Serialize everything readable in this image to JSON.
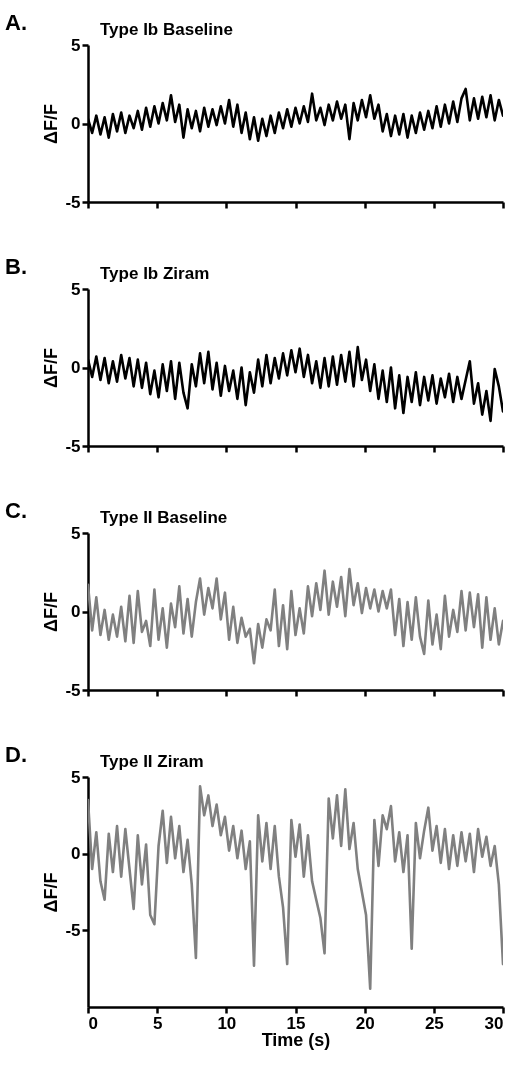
{
  "chart_data": [
    {
      "type": "line",
      "title": "A.",
      "subtitle": "Type Ib Baseline",
      "ylabel": "ΔF/F",
      "xlim": [
        0,
        30
      ],
      "xticks": [
        0,
        5,
        10,
        15,
        20,
        25,
        30
      ],
      "ylim": [
        -5,
        5
      ],
      "yticks": [
        -5,
        0,
        5
      ],
      "tick_labels": "y",
      "grid": false,
      "legend": false,
      "marker": "none",
      "line_style": "solid",
      "x": [
        0,
        0.3,
        0.6,
        0.9,
        1.2,
        1.5,
        1.8,
        2.1,
        2.4,
        2.7,
        3,
        3.3,
        3.6,
        3.9,
        4.2,
        4.5,
        4.8,
        5.1,
        5.4,
        5.7,
        6,
        6.3,
        6.6,
        6.9,
        7.2,
        7.5,
        7.8,
        8.1,
        8.4,
        8.7,
        9,
        9.3,
        9.6,
        9.9,
        10.2,
        10.5,
        10.8,
        11.1,
        11.4,
        11.7,
        12,
        12.3,
        12.6,
        12.9,
        13.2,
        13.5,
        13.8,
        14.1,
        14.4,
        14.7,
        15,
        15.3,
        15.6,
        15.9,
        16.2,
        16.5,
        16.8,
        17.1,
        17.4,
        17.7,
        18,
        18.3,
        18.6,
        18.9,
        19.2,
        19.5,
        19.8,
        20.1,
        20.4,
        20.7,
        21,
        21.3,
        21.6,
        21.9,
        22.2,
        22.5,
        22.8,
        23.1,
        23.4,
        23.7,
        24,
        24.3,
        24.6,
        24.9,
        25.2,
        25.5,
        25.8,
        26.1,
        26.4,
        26.7,
        27,
        27.3,
        27.6,
        27.9,
        28.2,
        28.5,
        28.8,
        29.1,
        29.4,
        29.7,
        30
      ],
      "series": [
        {
          "color": "#000000",
          "values": [
            0.3,
            -0.6,
            0.5,
            -0.7,
            0.4,
            -0.9,
            0.6,
            -0.5,
            0.7,
            -0.6,
            0.5,
            -0.3,
            0.8,
            -0.4,
            1.0,
            -0.2,
            1.1,
            0.0,
            1.3,
            0.2,
            1.8,
            0.1,
            1.2,
            -0.9,
            0.9,
            -0.3,
            0.8,
            -0.5,
            1.0,
            -0.2,
            0.9,
            -0.1,
            1.1,
            0.0,
            1.5,
            -0.2,
            1.2,
            -0.6,
            0.7,
            -1.0,
            0.4,
            -1.1,
            0.3,
            -0.8,
            0.5,
            -0.6,
            0.7,
            -0.3,
            0.9,
            -0.2,
            1.0,
            0.0,
            1.1,
            0.1,
            1.9,
            0.2,
            1.0,
            -0.1,
            1.2,
            0.2,
            1.4,
            0.3,
            1.2,
            -1.0,
            1.3,
            0.2,
            1.5,
            0.4,
            1.8,
            0.3,
            1.2,
            -0.5,
            0.6,
            -0.8,
            0.5,
            -0.7,
            0.6,
            -0.9,
            0.5,
            -0.6,
            0.7,
            -0.4,
            0.8,
            -0.3,
            1.1,
            -0.2,
            1.2,
            0.0,
            1.4,
            0.1,
            1.6,
            2.2,
            0.2,
            1.6,
            0.3,
            1.7,
            0.4,
            1.8,
            0.2,
            1.5,
            0.5
          ]
        }
      ]
    },
    {
      "type": "line",
      "title": "B.",
      "subtitle": "Type Ib Ziram",
      "ylabel": "ΔF/F",
      "xlim": [
        0,
        30
      ],
      "xticks": [
        0,
        5,
        10,
        15,
        20,
        25,
        30
      ],
      "ylim": [
        -5,
        5
      ],
      "yticks": [
        -5,
        0,
        5
      ],
      "tick_labels": "y",
      "grid": false,
      "legend": false,
      "marker": "none",
      "line_style": "solid",
      "x": [
        0,
        0.3,
        0.6,
        0.9,
        1.2,
        1.5,
        1.8,
        2.1,
        2.4,
        2.7,
        3,
        3.3,
        3.6,
        3.9,
        4.2,
        4.5,
        4.8,
        5.1,
        5.4,
        5.7,
        6,
        6.3,
        6.6,
        6.9,
        7.2,
        7.5,
        7.8,
        8.1,
        8.4,
        8.7,
        9,
        9.3,
        9.6,
        9.9,
        10.2,
        10.5,
        10.8,
        11.1,
        11.4,
        11.7,
        12,
        12.3,
        12.6,
        12.9,
        13.2,
        13.5,
        13.8,
        14.1,
        14.4,
        14.7,
        15,
        15.3,
        15.6,
        15.9,
        16.2,
        16.5,
        16.8,
        17.1,
        17.4,
        17.7,
        18,
        18.3,
        18.6,
        18.9,
        19.2,
        19.5,
        19.8,
        20.1,
        20.4,
        20.7,
        21,
        21.3,
        21.6,
        21.9,
        22.2,
        22.5,
        22.8,
        23.1,
        23.4,
        23.7,
        24,
        24.3,
        24.6,
        24.9,
        25.2,
        25.5,
        25.8,
        26.1,
        26.4,
        26.7,
        27,
        27.3,
        27.6,
        27.9,
        28.2,
        28.5,
        28.8,
        29.1,
        29.4,
        29.7,
        30
      ],
      "series": [
        {
          "color": "#000000",
          "values": [
            0.5,
            -0.6,
            0.7,
            -0.8,
            0.6,
            -1.0,
            0.4,
            -0.9,
            0.8,
            -0.7,
            0.6,
            -1.2,
            0.5,
            -1.3,
            0.3,
            -1.7,
            -0.2,
            -1.9,
            0.2,
            -1.5,
            0.4,
            -2.0,
            0.3,
            -1.6,
            -2.6,
            0.2,
            -1.2,
            0.9,
            -1.0,
            1.0,
            -1.4,
            0.3,
            -1.8,
            0.1,
            -1.5,
            -0.2,
            -2.0,
            0.0,
            -2.4,
            -0.3,
            -1.6,
            0.5,
            -1.2,
            0.8,
            -1.0,
            0.6,
            -0.7,
            0.9,
            -0.5,
            1.1,
            -0.3,
            1.2,
            -0.6,
            0.8,
            -1.0,
            0.4,
            -1.3,
            0.6,
            -1.2,
            0.7,
            -1.1,
            0.8,
            -0.9,
            1.0,
            -1.2,
            1.3,
            -0.8,
            0.5,
            -1.5,
            0.2,
            -2.0,
            -0.2,
            -2.2,
            0.0,
            -2.6,
            -0.5,
            -2.9,
            -0.6,
            -2.2,
            -0.3,
            -2.4,
            -0.6,
            -2.1,
            -0.5,
            -2.3,
            -0.7,
            -1.9,
            -0.4,
            -2.2,
            -0.6,
            -2.0,
            -0.8,
            0.4,
            -2.3,
            -1.0,
            -3.0,
            -1.5,
            -3.4,
            -0.1,
            -1.2,
            -2.8
          ]
        }
      ]
    },
    {
      "type": "line",
      "title": "C.",
      "subtitle": "Type II Baseline",
      "ylabel": "ΔF/F",
      "xlim": [
        0,
        30
      ],
      "xticks": [
        0,
        5,
        10,
        15,
        20,
        25,
        30
      ],
      "ylim": [
        -5,
        5
      ],
      "yticks": [
        -5,
        0,
        5
      ],
      "tick_labels": "y",
      "grid": false,
      "legend": false,
      "marker": "none",
      "line_style": "solid",
      "x": [
        0,
        0.3,
        0.6,
        0.9,
        1.2,
        1.5,
        1.8,
        2.1,
        2.4,
        2.7,
        3,
        3.3,
        3.6,
        3.9,
        4.2,
        4.5,
        4.8,
        5.1,
        5.4,
        5.7,
        6,
        6.3,
        6.6,
        6.9,
        7.2,
        7.5,
        7.8,
        8.1,
        8.4,
        8.7,
        9,
        9.3,
        9.6,
        9.9,
        10.2,
        10.5,
        10.8,
        11.1,
        11.4,
        11.7,
        12,
        12.3,
        12.6,
        12.9,
        13.2,
        13.5,
        13.8,
        14.1,
        14.4,
        14.7,
        15,
        15.3,
        15.6,
        15.9,
        16.2,
        16.5,
        16.8,
        17.1,
        17.4,
        17.7,
        18,
        18.3,
        18.6,
        18.9,
        19.2,
        19.5,
        19.8,
        20.1,
        20.4,
        20.7,
        21,
        21.3,
        21.6,
        21.9,
        22.2,
        22.5,
        22.8,
        23.1,
        23.4,
        23.7,
        24,
        24.3,
        24.6,
        24.9,
        25.2,
        25.5,
        25.8,
        26.1,
        26.4,
        26.7,
        27,
        27.3,
        27.6,
        27.9,
        28.2,
        28.5,
        28.8,
        29.1,
        29.4,
        29.7,
        30
      ],
      "series": [
        {
          "color": "#808080",
          "values": [
            1.7,
            -1.2,
            0.9,
            -1.5,
            0.1,
            -1.8,
            -0.2,
            -1.6,
            0.3,
            -1.9,
            1.0,
            -2.0,
            1.3,
            -1.3,
            -0.6,
            -2.2,
            1.4,
            -1.8,
            0.2,
            -2.3,
            0.5,
            -1.0,
            1.6,
            -1.4,
            0.8,
            -1.6,
            0.6,
            2.1,
            -0.2,
            1.5,
            0.2,
            2.1,
            -0.5,
            1.2,
            -1.8,
            0.3,
            -2.0,
            -0.4,
            -1.6,
            -1.1,
            -3.3,
            -0.8,
            -2.3,
            -0.5,
            -1.2,
            1.4,
            -2.2,
            0.4,
            -2.4,
            1.3,
            -1.5,
            0.2,
            -1.4,
            1.6,
            -0.3,
            1.8,
            0.1,
            2.6,
            -0.2,
            1.9,
            0.3,
            2.2,
            -0.3,
            2.7,
            0.4,
            1.8,
            -0.1,
            1.5,
            0.2,
            1.4,
            0.0,
            1.3,
            0.2,
            1.4,
            -1.5,
            0.8,
            -2.2,
            0.6,
            -1.8,
            0.9,
            -1.6,
            -2.7,
            0.7,
            -2.1,
            -0.2,
            -2.4,
            1.0,
            -1.6,
            0.1,
            -1.3,
            1.3,
            -1.2,
            1.2,
            -1.0,
            1.1,
            -2.3,
            0.9,
            -1.8,
            0.2,
            -2.1,
            -0.6
          ]
        }
      ]
    },
    {
      "type": "line",
      "title": "D.",
      "subtitle": "Type II Ziram",
      "ylabel": "ΔF/F",
      "xlabel": "Time (s)",
      "xlim": [
        0,
        30
      ],
      "xticks": [
        0,
        5,
        10,
        15,
        20,
        25,
        30
      ],
      "ylim": [
        -10,
        5
      ],
      "yticks": [
        -5,
        0,
        5
      ],
      "grid": false,
      "legend": false,
      "marker": "none",
      "line_style": "solid",
      "x": [
        0,
        0.3,
        0.6,
        0.9,
        1.2,
        1.5,
        1.8,
        2.1,
        2.4,
        2.7,
        3,
        3.3,
        3.6,
        3.9,
        4.2,
        4.5,
        4.8,
        5.1,
        5.4,
        5.7,
        6,
        6.3,
        6.6,
        6.9,
        7.2,
        7.5,
        7.8,
        8.1,
        8.4,
        8.7,
        9,
        9.3,
        9.6,
        9.9,
        10.2,
        10.5,
        10.8,
        11.1,
        11.4,
        11.7,
        12,
        12.3,
        12.6,
        12.9,
        13.2,
        13.5,
        13.8,
        14.1,
        14.4,
        14.7,
        15,
        15.3,
        15.6,
        15.9,
        16.2,
        16.5,
        16.8,
        17.1,
        17.4,
        17.7,
        18,
        18.3,
        18.6,
        18.9,
        19.2,
        19.5,
        19.8,
        20.1,
        20.4,
        20.7,
        21,
        21.3,
        21.6,
        21.9,
        22.2,
        22.5,
        22.8,
        23.1,
        23.4,
        23.7,
        24,
        24.3,
        24.6,
        24.9,
        25.2,
        25.5,
        25.8,
        26.1,
        26.4,
        26.7,
        27,
        27.3,
        27.6,
        27.9,
        28.2,
        28.5,
        28.8,
        29.1,
        29.4,
        29.7,
        30
      ],
      "series": [
        {
          "color": "#808080",
          "values": [
            3.5,
            -1.0,
            1.4,
            -1.8,
            -3.0,
            1.3,
            -1.2,
            1.8,
            -1.5,
            1.6,
            -1.0,
            -3.6,
            1.2,
            -2.0,
            0.6,
            -4.0,
            -4.6,
            0.5,
            2.8,
            -0.6,
            2.4,
            -0.3,
            1.8,
            -1.2,
            0.9,
            -2.0,
            -6.8,
            4.4,
            2.5,
            3.8,
            1.8,
            3.2,
            1.2,
            2.4,
            0.2,
            1.8,
            -0.3,
            1.5,
            -1.0,
            0.8,
            -7.3,
            2.5,
            -0.5,
            2.0,
            -1.0,
            1.8,
            -1.5,
            -3.5,
            -7.2,
            2.2,
            -0.2,
            1.9,
            -1.5,
            1.2,
            -1.8,
            -3.0,
            -4.2,
            -6.5,
            3.6,
            1.0,
            3.8,
            0.5,
            4.2,
            0.3,
            2.0,
            -1.0,
            -2.5,
            -4.0,
            -8.8,
            2.2,
            -0.8,
            2.5,
            1.6,
            3.1,
            -0.5,
            1.4,
            -1.2,
            1.2,
            -6.2,
            2.0,
            -0.3,
            1.5,
            3.0,
            0.2,
            1.8,
            -0.6,
            1.6,
            -1.0,
            1.2,
            -0.8,
            1.4,
            -0.5,
            1.3,
            -1.2,
            1.6,
            -0.2,
            1.1,
            -0.8,
            0.5,
            -2.0,
            -7.2
          ]
        }
      ]
    }
  ]
}
